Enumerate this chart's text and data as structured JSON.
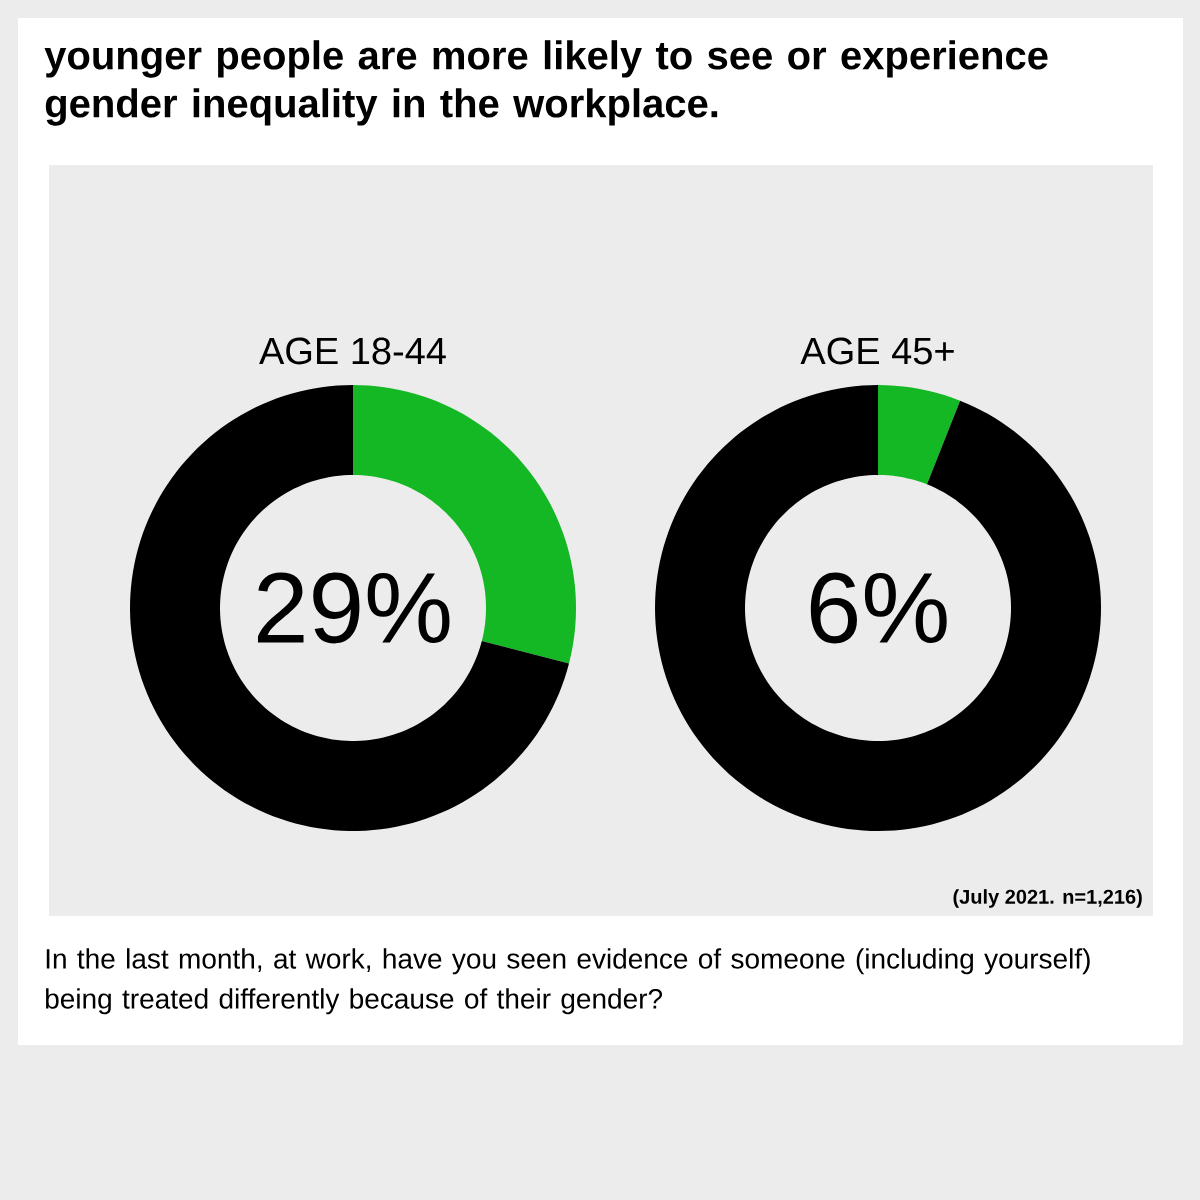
{
  "chart_data": [
    {
      "type": "other",
      "title": "younger people are more likely to see or experience gender inequality in the workplace.",
      "annotations": [
        "In the last month, at work, have you seen evidence of someone (including yourself) being treated differently because of their gender?"
      ]
    },
    {
      "type": "donut",
      "title": "AGE 18-44",
      "categories": [
        null,
        null
      ],
      "values": [
        29,
        71
      ],
      "colors": [
        "#14b824",
        "#000000"
      ],
      "annotations": [
        "29%"
      ]
    },
    {
      "type": "donut",
      "title": "AGE 45+",
      "categories": [
        null,
        null
      ],
      "values": [
        6,
        94
      ],
      "colors": [
        "#14b824",
        "#000000"
      ],
      "annotations": [
        "6%",
        "(July 2021. n=1,216)"
      ]
    }
  ]
}
